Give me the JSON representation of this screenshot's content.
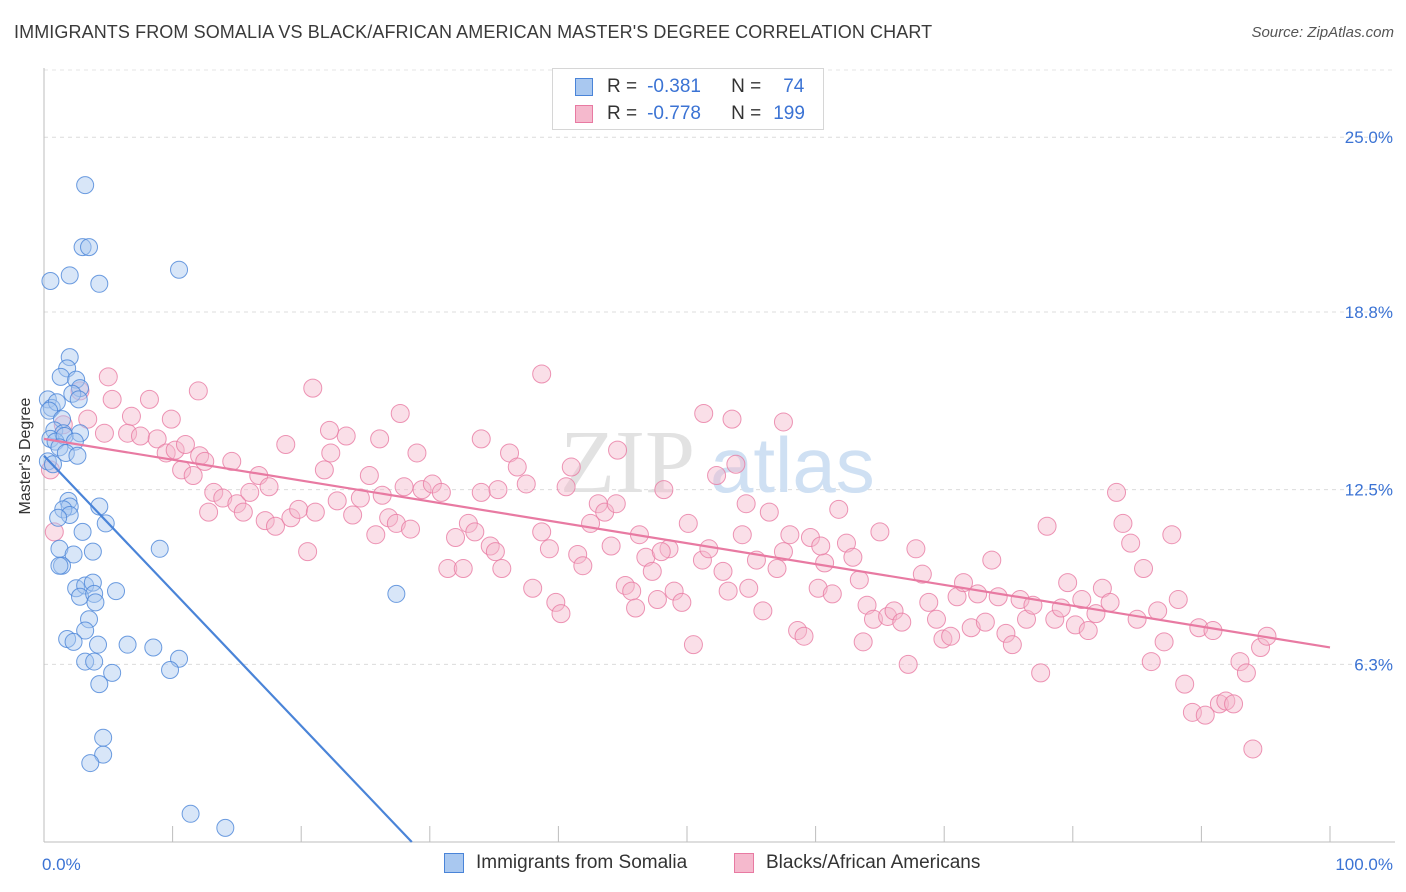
{
  "title": "IMMIGRANTS FROM SOMALIA VS BLACK/AFRICAN AMERICAN MASTER'S DEGREE CORRELATION CHART",
  "source": "Source: ZipAtlas.com",
  "watermark": {
    "zip": "ZIP",
    "atlas": "atlas"
  },
  "legend": {
    "r_label": "R =",
    "n_label": "N =",
    "series": [
      {
        "r": "-0.381",
        "n": "74"
      },
      {
        "r": "-0.778",
        "n": "199"
      }
    ]
  },
  "chart_data": {
    "type": "scatter",
    "title": "IMMIGRANTS FROM SOMALIA VS BLACK/AFRICAN AMERICAN MASTER'S DEGREE CORRELATION CHART",
    "xlabel": "",
    "ylabel": "Master's Degree",
    "xlim": [
      0,
      100
    ],
    "ylim": [
      0,
      27.1
    ],
    "x_tick_labels": [
      "0.0%",
      "100.0%"
    ],
    "y_ticks": [
      6.3,
      12.5,
      18.8,
      25.0
    ],
    "y_tick_labels": [
      "6.3%",
      "12.5%",
      "18.8%",
      "25.0%"
    ],
    "grid": true,
    "legend_position": "top-center",
    "colors": {
      "blue": "#4a84d8",
      "pink": "#e87aa2",
      "blue_fill": "#a9c8f0",
      "pink_fill": "#f5b9cd",
      "axis_text": "#3b73d4"
    },
    "series": [
      {
        "name": "Immigrants from Somalia",
        "color": "#4a84d8",
        "fill": "#a9c8f0",
        "r": -0.381,
        "n": 74,
        "trendline": {
          "x": [
            0,
            28.6
          ],
          "y": [
            13.7,
            0
          ]
        },
        "points": [
          [
            3.2,
            23.3
          ],
          [
            0.5,
            19.9
          ],
          [
            2.0,
            20.1
          ],
          [
            3.0,
            21.1
          ],
          [
            3.5,
            21.1
          ],
          [
            4.3,
            19.8
          ],
          [
            10.5,
            20.3
          ],
          [
            2.0,
            17.2
          ],
          [
            1.8,
            16.8
          ],
          [
            1.3,
            16.5
          ],
          [
            2.5,
            16.4
          ],
          [
            2.8,
            16.1
          ],
          [
            2.2,
            15.9
          ],
          [
            0.3,
            15.7
          ],
          [
            0.6,
            15.4
          ],
          [
            1.0,
            15.6
          ],
          [
            0.4,
            15.3
          ],
          [
            2.7,
            15.7
          ],
          [
            1.4,
            15.0
          ],
          [
            0.8,
            14.6
          ],
          [
            1.5,
            14.5
          ],
          [
            2.8,
            14.5
          ],
          [
            0.5,
            14.3
          ],
          [
            0.9,
            14.2
          ],
          [
            1.6,
            14.4
          ],
          [
            2.4,
            14.2
          ],
          [
            1.2,
            14.0
          ],
          [
            1.7,
            13.8
          ],
          [
            2.6,
            13.7
          ],
          [
            0.3,
            13.5
          ],
          [
            0.7,
            13.4
          ],
          [
            1.9,
            12.1
          ],
          [
            2.0,
            11.9
          ],
          [
            4.3,
            11.9
          ],
          [
            1.5,
            11.8
          ],
          [
            2.0,
            11.6
          ],
          [
            1.1,
            11.5
          ],
          [
            4.8,
            11.3
          ],
          [
            3.0,
            11.0
          ],
          [
            1.2,
            10.4
          ],
          [
            2.3,
            10.2
          ],
          [
            3.8,
            10.3
          ],
          [
            9.0,
            10.4
          ],
          [
            1.4,
            9.8
          ],
          [
            1.2,
            9.8
          ],
          [
            2.5,
            9.0
          ],
          [
            3.2,
            9.1
          ],
          [
            3.8,
            9.2
          ],
          [
            5.6,
            8.9
          ],
          [
            2.8,
            8.7
          ],
          [
            3.9,
            8.8
          ],
          [
            4.0,
            8.5
          ],
          [
            27.4,
            8.8
          ],
          [
            3.5,
            7.9
          ],
          [
            3.2,
            7.5
          ],
          [
            1.8,
            7.2
          ],
          [
            2.3,
            7.1
          ],
          [
            4.2,
            7.0
          ],
          [
            6.5,
            7.0
          ],
          [
            8.5,
            6.9
          ],
          [
            3.2,
            6.4
          ],
          [
            3.9,
            6.4
          ],
          [
            10.5,
            6.5
          ],
          [
            5.3,
            6.0
          ],
          [
            9.8,
            6.1
          ],
          [
            4.3,
            5.6
          ],
          [
            4.6,
            3.7
          ],
          [
            4.6,
            3.1
          ],
          [
            3.6,
            2.8
          ],
          [
            11.4,
            1.0
          ],
          [
            14.1,
            0.5
          ]
        ]
      },
      {
        "name": "Blacks/African Americans",
        "color": "#e87aa2",
        "fill": "#f5b9cd",
        "r": -0.778,
        "n": 199,
        "trendline": {
          "x": [
            0,
            100
          ],
          "y": [
            14.3,
            6.9
          ]
        },
        "points": [
          [
            0.5,
            13.2
          ],
          [
            0.8,
            11.0
          ],
          [
            1.5,
            14.8
          ],
          [
            2.8,
            16.0
          ],
          [
            3.4,
            15.0
          ],
          [
            4.7,
            14.5
          ],
          [
            5.0,
            16.5
          ],
          [
            5.3,
            15.7
          ],
          [
            6.5,
            14.5
          ],
          [
            6.8,
            15.1
          ],
          [
            7.5,
            14.4
          ],
          [
            8.2,
            15.7
          ],
          [
            8.8,
            14.3
          ],
          [
            9.5,
            13.8
          ],
          [
            9.9,
            15.0
          ],
          [
            10.2,
            13.9
          ],
          [
            10.7,
            13.2
          ],
          [
            11.0,
            14.1
          ],
          [
            11.6,
            13.0
          ],
          [
            12.1,
            13.7
          ],
          [
            12.5,
            13.5
          ],
          [
            12.8,
            11.7
          ],
          [
            13.2,
            12.4
          ],
          [
            13.9,
            12.2
          ],
          [
            14.6,
            13.5
          ],
          [
            15.0,
            12.0
          ],
          [
            15.5,
            11.7
          ],
          [
            16.0,
            12.4
          ],
          [
            16.7,
            13.0
          ],
          [
            17.2,
            11.4
          ],
          [
            17.5,
            12.6
          ],
          [
            18.0,
            11.2
          ],
          [
            18.8,
            14.1
          ],
          [
            19.2,
            11.5
          ],
          [
            19.8,
            11.8
          ],
          [
            20.5,
            10.3
          ],
          [
            21.1,
            11.7
          ],
          [
            21.8,
            13.2
          ],
          [
            22.3,
            13.8
          ],
          [
            22.8,
            12.1
          ],
          [
            23.5,
            14.4
          ],
          [
            24.0,
            11.6
          ],
          [
            24.6,
            12.2
          ],
          [
            25.3,
            13.0
          ],
          [
            25.8,
            10.9
          ],
          [
            26.3,
            12.3
          ],
          [
            26.8,
            11.5
          ],
          [
            27.4,
            11.3
          ],
          [
            28.0,
            12.6
          ],
          [
            28.5,
            11.1
          ],
          [
            29.0,
            13.8
          ],
          [
            29.4,
            12.5
          ],
          [
            30.2,
            12.7
          ],
          [
            30.9,
            12.4
          ],
          [
            31.4,
            9.7
          ],
          [
            32.0,
            10.8
          ],
          [
            32.6,
            9.7
          ],
          [
            33.0,
            11.3
          ],
          [
            33.5,
            11.0
          ],
          [
            34.0,
            12.4
          ],
          [
            34.7,
            10.5
          ],
          [
            35.1,
            10.3
          ],
          [
            35.6,
            9.7
          ],
          [
            36.2,
            13.8
          ],
          [
            36.8,
            13.3
          ],
          [
            37.5,
            12.7
          ],
          [
            38.0,
            9.0
          ],
          [
            38.7,
            11.0
          ],
          [
            39.3,
            10.4
          ],
          [
            39.8,
            8.5
          ],
          [
            40.2,
            8.1
          ],
          [
            40.6,
            12.6
          ],
          [
            41.0,
            13.3
          ],
          [
            41.5,
            10.2
          ],
          [
            41.9,
            9.8
          ],
          [
            42.5,
            11.3
          ],
          [
            43.1,
            12.0
          ],
          [
            43.6,
            11.7
          ],
          [
            44.1,
            10.5
          ],
          [
            44.6,
            13.9
          ],
          [
            45.2,
            9.1
          ],
          [
            45.7,
            8.9
          ],
          [
            46.3,
            10.9
          ],
          [
            46.8,
            10.1
          ],
          [
            47.3,
            9.6
          ],
          [
            47.7,
            8.6
          ],
          [
            48.2,
            12.5
          ],
          [
            48.6,
            10.4
          ],
          [
            49.0,
            8.9
          ],
          [
            49.6,
            8.5
          ],
          [
            50.1,
            11.3
          ],
          [
            50.5,
            7.0
          ],
          [
            51.2,
            10.0
          ],
          [
            51.7,
            10.4
          ],
          [
            52.3,
            13.0
          ],
          [
            52.8,
            9.6
          ],
          [
            53.2,
            8.9
          ],
          [
            53.8,
            13.4
          ],
          [
            54.3,
            10.9
          ],
          [
            54.8,
            9.0
          ],
          [
            55.4,
            10.0
          ],
          [
            55.9,
            8.2
          ],
          [
            56.4,
            11.7
          ],
          [
            57.0,
            9.7
          ],
          [
            57.5,
            10.3
          ],
          [
            58.0,
            10.9
          ],
          [
            58.6,
            7.5
          ],
          [
            59.1,
            7.3
          ],
          [
            59.6,
            10.8
          ],
          [
            60.2,
            9.0
          ],
          [
            60.7,
            9.9
          ],
          [
            61.3,
            8.8
          ],
          [
            61.8,
            11.8
          ],
          [
            62.4,
            10.6
          ],
          [
            62.9,
            10.1
          ],
          [
            63.4,
            9.3
          ],
          [
            64.0,
            8.4
          ],
          [
            64.5,
            7.9
          ],
          [
            65.0,
            11.0
          ],
          [
            65.6,
            8.0
          ],
          [
            66.1,
            8.2
          ],
          [
            66.7,
            7.8
          ],
          [
            67.2,
            6.3
          ],
          [
            67.8,
            10.4
          ],
          [
            68.3,
            9.5
          ],
          [
            68.8,
            8.5
          ],
          [
            69.4,
            7.9
          ],
          [
            69.9,
            7.2
          ],
          [
            70.5,
            7.3
          ],
          [
            71.0,
            8.7
          ],
          [
            71.5,
            9.2
          ],
          [
            72.1,
            7.6
          ],
          [
            72.6,
            8.8
          ],
          [
            73.2,
            7.8
          ],
          [
            73.7,
            10.0
          ],
          [
            74.2,
            8.7
          ],
          [
            74.8,
            7.4
          ],
          [
            75.3,
            7.0
          ],
          [
            75.9,
            8.6
          ],
          [
            76.4,
            7.9
          ],
          [
            76.9,
            8.4
          ],
          [
            77.5,
            6.0
          ],
          [
            78.0,
            11.2
          ],
          [
            78.6,
            7.9
          ],
          [
            79.1,
            8.3
          ],
          [
            79.6,
            9.2
          ],
          [
            80.2,
            7.7
          ],
          [
            80.7,
            8.6
          ],
          [
            81.2,
            7.5
          ],
          [
            81.8,
            8.1
          ],
          [
            82.3,
            9.0
          ],
          [
            82.9,
            8.5
          ],
          [
            83.4,
            12.4
          ],
          [
            83.9,
            11.3
          ],
          [
            84.5,
            10.6
          ],
          [
            85.0,
            7.9
          ],
          [
            85.5,
            9.7
          ],
          [
            86.1,
            6.4
          ],
          [
            86.6,
            8.2
          ],
          [
            87.1,
            7.1
          ],
          [
            87.7,
            10.9
          ],
          [
            88.2,
            8.6
          ],
          [
            88.7,
            5.6
          ],
          [
            89.3,
            4.6
          ],
          [
            89.8,
            7.6
          ],
          [
            90.3,
            4.5
          ],
          [
            90.9,
            7.5
          ],
          [
            91.4,
            4.9
          ],
          [
            91.9,
            5.0
          ],
          [
            92.5,
            4.9
          ],
          [
            93.0,
            6.4
          ],
          [
            93.5,
            6.0
          ],
          [
            94.0,
            3.3
          ],
          [
            94.6,
            6.9
          ],
          [
            95.1,
            7.3
          ],
          [
            35.3,
            12.5
          ],
          [
            27.7,
            15.2
          ],
          [
            26.1,
            14.3
          ],
          [
            22.2,
            14.6
          ],
          [
            12.0,
            16.0
          ],
          [
            34.0,
            14.3
          ],
          [
            38.7,
            16.6
          ],
          [
            51.3,
            15.2
          ],
          [
            53.5,
            15.0
          ],
          [
            57.5,
            14.9
          ],
          [
            20.9,
            16.1
          ],
          [
            44.5,
            12.0
          ],
          [
            46.0,
            8.3
          ],
          [
            48.0,
            10.3
          ],
          [
            54.6,
            12.0
          ],
          [
            60.4,
            10.5
          ],
          [
            63.7,
            7.1
          ]
        ]
      }
    ]
  },
  "bottom_legend": [
    "Immigrants from Somalia",
    "Blacks/African Americans"
  ]
}
